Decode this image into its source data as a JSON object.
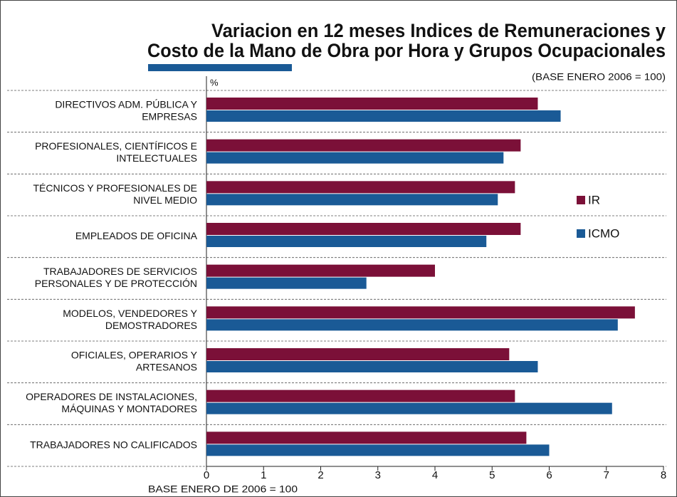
{
  "chart_data": {
    "type": "bar",
    "orientation": "horizontal",
    "title": [
      "Variacion en 12 meses Indices de Remuneraciones y",
      "Costo de la Mano de Obra por Hora y Grupos Ocupacionales"
    ],
    "subtitle": "(BASE ENERO 2006 = 100)",
    "y_unit": "%",
    "xlabel": "BASE ENERO DE 2006 = 100",
    "categories": [
      [
        "DIRECTIVOS ADM. PÚBLICA Y",
        "EMPRESAS"
      ],
      [
        "PROFESIONALES, CIENTÍFICOS E",
        "INTELECTUALES"
      ],
      [
        "TÉCNICOS Y PROFESIONALES DE",
        "NIVEL MEDIO"
      ],
      [
        "EMPLEADOS DE OFICINA"
      ],
      [
        "TRABAJADORES DE SERVICIOS",
        "PERSONALES Y DE PROTECCIÓN"
      ],
      [
        "MODELOS, VENDEDORES Y",
        "DEMOSTRADORES"
      ],
      [
        "OFICIALES, OPERARIOS Y",
        "ARTESANOS"
      ],
      [
        "OPERADORES DE INSTALACIONES,",
        "MÁQUINAS Y MONTADORES"
      ],
      [
        "TRABAJADORES NO CALIFICADOS"
      ]
    ],
    "series": [
      {
        "name": "IR",
        "color": "#7b1038",
        "values": [
          5.8,
          5.5,
          5.4,
          5.5,
          4.0,
          7.5,
          5.3,
          5.4,
          5.6
        ]
      },
      {
        "name": "ICMO",
        "color": "#1a5a96",
        "values": [
          6.2,
          5.2,
          5.1,
          4.9,
          2.8,
          7.2,
          5.8,
          7.1,
          6.0
        ]
      }
    ],
    "xlim": [
      0,
      8
    ],
    "xticks": [
      0,
      1,
      2,
      3,
      4,
      5,
      6,
      7,
      8
    ],
    "grid": true,
    "legend": "right"
  }
}
